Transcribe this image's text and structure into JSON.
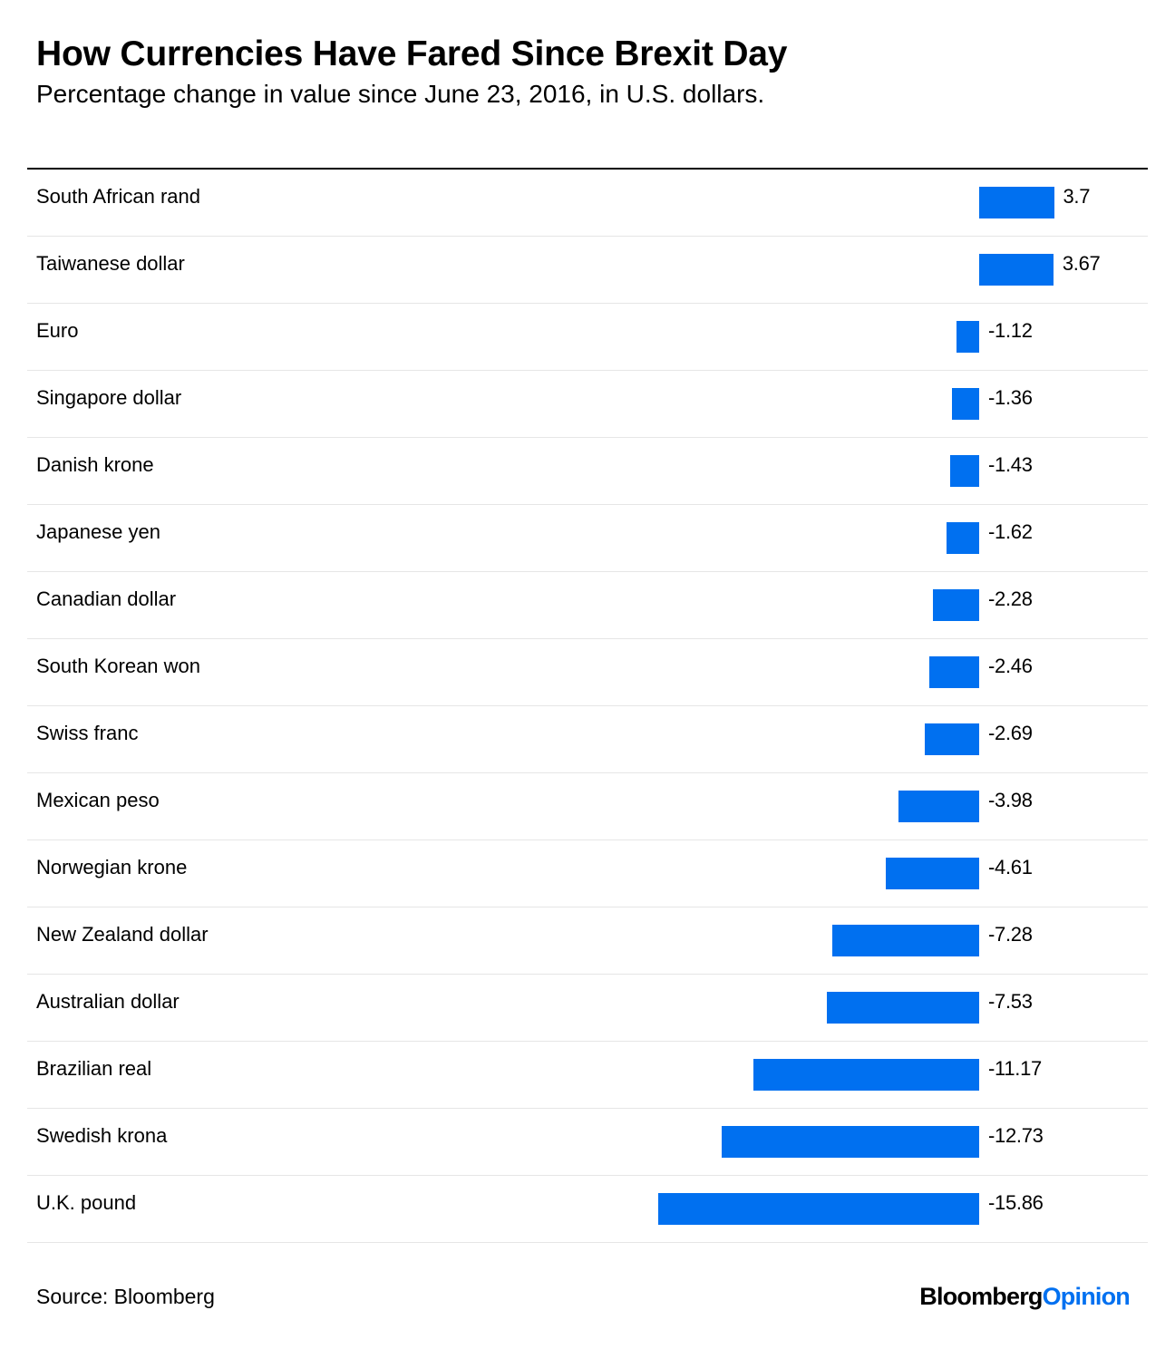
{
  "header": {
    "title": "How Currencies Have Fared Since Brexit Day",
    "subtitle": "Percentage change in value since June 23, 2016, in U.S. dollars."
  },
  "footer": {
    "source": "Source: Bloomberg",
    "brand_primary": "Bloomberg",
    "brand_accent": "Opinion"
  },
  "colors": {
    "bar": "#0070f0",
    "text": "#000000",
    "brand_accent": "#0070f0"
  },
  "chart_data": {
    "type": "bar",
    "orientation": "horizontal",
    "title": "How Currencies Have Fared Since Brexit Day",
    "subtitle": "Percentage change in value since June 23, 2016, in U.S. dollars.",
    "xlabel": "",
    "ylabel": "",
    "grid": false,
    "xlim": [
      -16,
      4
    ],
    "categories": [
      "South African rand",
      "Taiwanese dollar",
      "Euro",
      "Singapore dollar",
      "Danish krone",
      "Japanese yen",
      "Canadian dollar",
      "South Korean won",
      "Swiss franc",
      "Mexican peso",
      "Norwegian krone",
      "New Zealand dollar",
      "Australian dollar",
      "Brazilian real",
      "Swedish krona",
      "U.K. pound"
    ],
    "values": [
      3.7,
      3.67,
      -1.12,
      -1.36,
      -1.43,
      -1.62,
      -2.28,
      -2.46,
      -2.69,
      -3.98,
      -4.61,
      -7.28,
      -7.53,
      -11.17,
      -12.73,
      -15.86
    ],
    "value_labels": [
      "3.7",
      "3.67",
      "-1.12",
      "-1.36",
      "-1.43",
      "-1.62",
      "-2.28",
      "-2.46",
      "-2.69",
      "-3.98",
      "-4.61",
      "-7.28",
      "-7.53",
      "-11.17",
      "-12.73",
      "-15.86"
    ]
  }
}
